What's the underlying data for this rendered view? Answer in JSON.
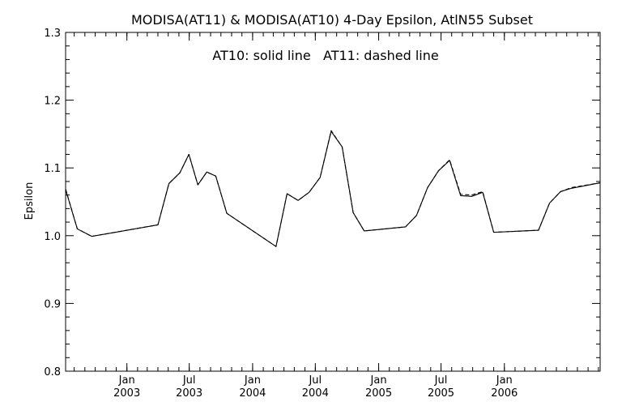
{
  "chart_data": {
    "type": "line",
    "title": "MODISA(AT11) & MODISA(AT10) 4-Day Epsilon, AtlN55 Subset",
    "annotation": "AT10: solid line   AT11: dashed line",
    "xlabel": "",
    "ylabel": "Epsilon",
    "ylim": [
      0.8,
      1.3
    ],
    "y_ticks": [
      "0.8",
      "0.9",
      "1.0",
      "1.1",
      "1.2",
      "1.3"
    ],
    "x_range": [
      "2002-07-07",
      "2006-10-06"
    ],
    "x_ticks": [
      {
        "date": "2003-01-01",
        "month": "Jan",
        "year": "2003"
      },
      {
        "date": "2003-07-01",
        "month": "Jul",
        "year": "2003"
      },
      {
        "date": "2004-01-01",
        "month": "Jan",
        "year": "2004"
      },
      {
        "date": "2004-07-01",
        "month": "Jul",
        "year": "2004"
      },
      {
        "date": "2005-01-01",
        "month": "Jan",
        "year": "2005"
      },
      {
        "date": "2005-07-01",
        "month": "Jul",
        "year": "2005"
      },
      {
        "date": "2006-01-01",
        "month": "Jan",
        "year": "2006"
      }
    ],
    "grid": false,
    "series": [
      {
        "style": "solid",
        "points": [
          [
            "2002-07-07",
            1.068
          ],
          [
            "2002-08-10",
            1.01
          ],
          [
            "2002-09-21",
            0.999
          ],
          [
            "2003-04-01",
            1.016
          ],
          [
            "2003-05-03",
            1.077
          ],
          [
            "2003-06-04",
            1.093
          ],
          [
            "2003-06-30",
            1.12
          ],
          [
            "2003-07-26",
            1.075
          ],
          [
            "2003-08-21",
            1.094
          ],
          [
            "2003-09-16",
            1.088
          ],
          [
            "2003-10-18",
            1.033
          ],
          [
            "2004-03-09",
            0.984
          ],
          [
            "2004-04-10",
            1.062
          ],
          [
            "2004-05-12",
            1.052
          ],
          [
            "2004-06-13",
            1.064
          ],
          [
            "2004-07-15",
            1.086
          ],
          [
            "2004-08-16",
            1.154
          ],
          [
            "2004-09-17",
            1.131
          ],
          [
            "2004-10-19",
            1.034
          ],
          [
            "2004-11-20",
            1.007
          ],
          [
            "2005-03-20",
            1.013
          ],
          [
            "2005-04-21",
            1.03
          ],
          [
            "2005-05-23",
            1.071
          ],
          [
            "2005-06-24",
            1.096
          ],
          [
            "2005-07-26",
            1.111
          ],
          [
            "2005-08-27",
            1.059
          ],
          [
            "2005-09-28",
            1.058
          ],
          [
            "2005-10-30",
            1.064
          ],
          [
            "2005-12-01",
            1.005
          ],
          [
            "2006-04-10",
            1.008
          ],
          [
            "2006-05-12",
            1.048
          ],
          [
            "2006-06-13",
            1.065
          ],
          [
            "2006-07-15",
            1.07
          ],
          [
            "2006-10-06",
            1.078
          ]
        ]
      },
      {
        "style": "dashed",
        "points": [
          [
            "2002-07-07",
            1.069
          ],
          [
            "2002-08-10",
            1.01
          ],
          [
            "2002-09-21",
            0.999
          ],
          [
            "2003-04-01",
            1.016
          ],
          [
            "2003-05-03",
            1.077
          ],
          [
            "2003-06-04",
            1.093
          ],
          [
            "2003-06-30",
            1.12
          ],
          [
            "2003-07-26",
            1.075
          ],
          [
            "2003-08-21",
            1.094
          ],
          [
            "2003-09-16",
            1.088
          ],
          [
            "2003-10-18",
            1.033
          ],
          [
            "2004-03-09",
            0.984
          ],
          [
            "2004-04-10",
            1.062
          ],
          [
            "2004-05-12",
            1.052
          ],
          [
            "2004-06-13",
            1.064
          ],
          [
            "2004-07-15",
            1.086
          ],
          [
            "2004-08-16",
            1.155
          ],
          [
            "2004-09-17",
            1.131
          ],
          [
            "2004-10-19",
            1.034
          ],
          [
            "2004-11-20",
            1.007
          ],
          [
            "2005-03-20",
            1.013
          ],
          [
            "2005-04-21",
            1.03
          ],
          [
            "2005-05-23",
            1.071
          ],
          [
            "2005-06-24",
            1.096
          ],
          [
            "2005-07-26",
            1.112
          ],
          [
            "2005-08-27",
            1.061
          ],
          [
            "2005-09-28",
            1.06
          ],
          [
            "2005-10-30",
            1.065
          ],
          [
            "2005-12-01",
            1.005
          ],
          [
            "2006-04-10",
            1.008
          ],
          [
            "2006-05-12",
            1.048
          ],
          [
            "2006-06-13",
            1.065
          ],
          [
            "2006-07-15",
            1.071
          ],
          [
            "2006-10-06",
            1.078
          ]
        ]
      }
    ]
  }
}
